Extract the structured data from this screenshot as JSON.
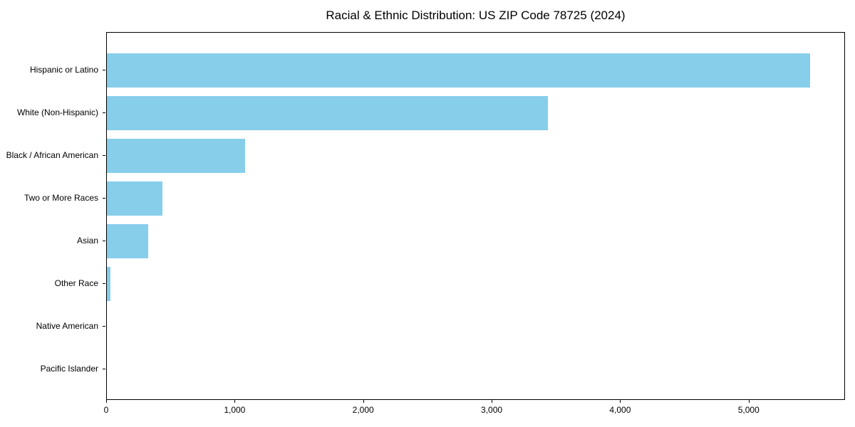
{
  "chart_data": {
    "type": "bar",
    "orientation": "horizontal",
    "title": "Racial & Ethnic Distribution: US ZIP Code 78725 (2024)",
    "categories": [
      "Hispanic or Latino",
      "White (Non-Hispanic)",
      "Black / African American",
      "Two or More Races",
      "Asian",
      "Other Race",
      "Native American",
      "Pacific Islander"
    ],
    "values": [
      5470,
      3430,
      1075,
      435,
      320,
      28,
      0,
      0
    ],
    "xlabel": "",
    "ylabel": "",
    "xlim": [
      0,
      5750
    ],
    "x_ticks": [
      0,
      1000,
      2000,
      3000,
      4000,
      5000
    ],
    "x_tick_labels": [
      "0",
      "1,000",
      "2,000",
      "3,000",
      "4,000",
      "5,000"
    ],
    "bar_color": "#87CEEB",
    "axis_color": "#000000",
    "background_color": "#FFFFFF",
    "grid": false,
    "legend": null
  }
}
